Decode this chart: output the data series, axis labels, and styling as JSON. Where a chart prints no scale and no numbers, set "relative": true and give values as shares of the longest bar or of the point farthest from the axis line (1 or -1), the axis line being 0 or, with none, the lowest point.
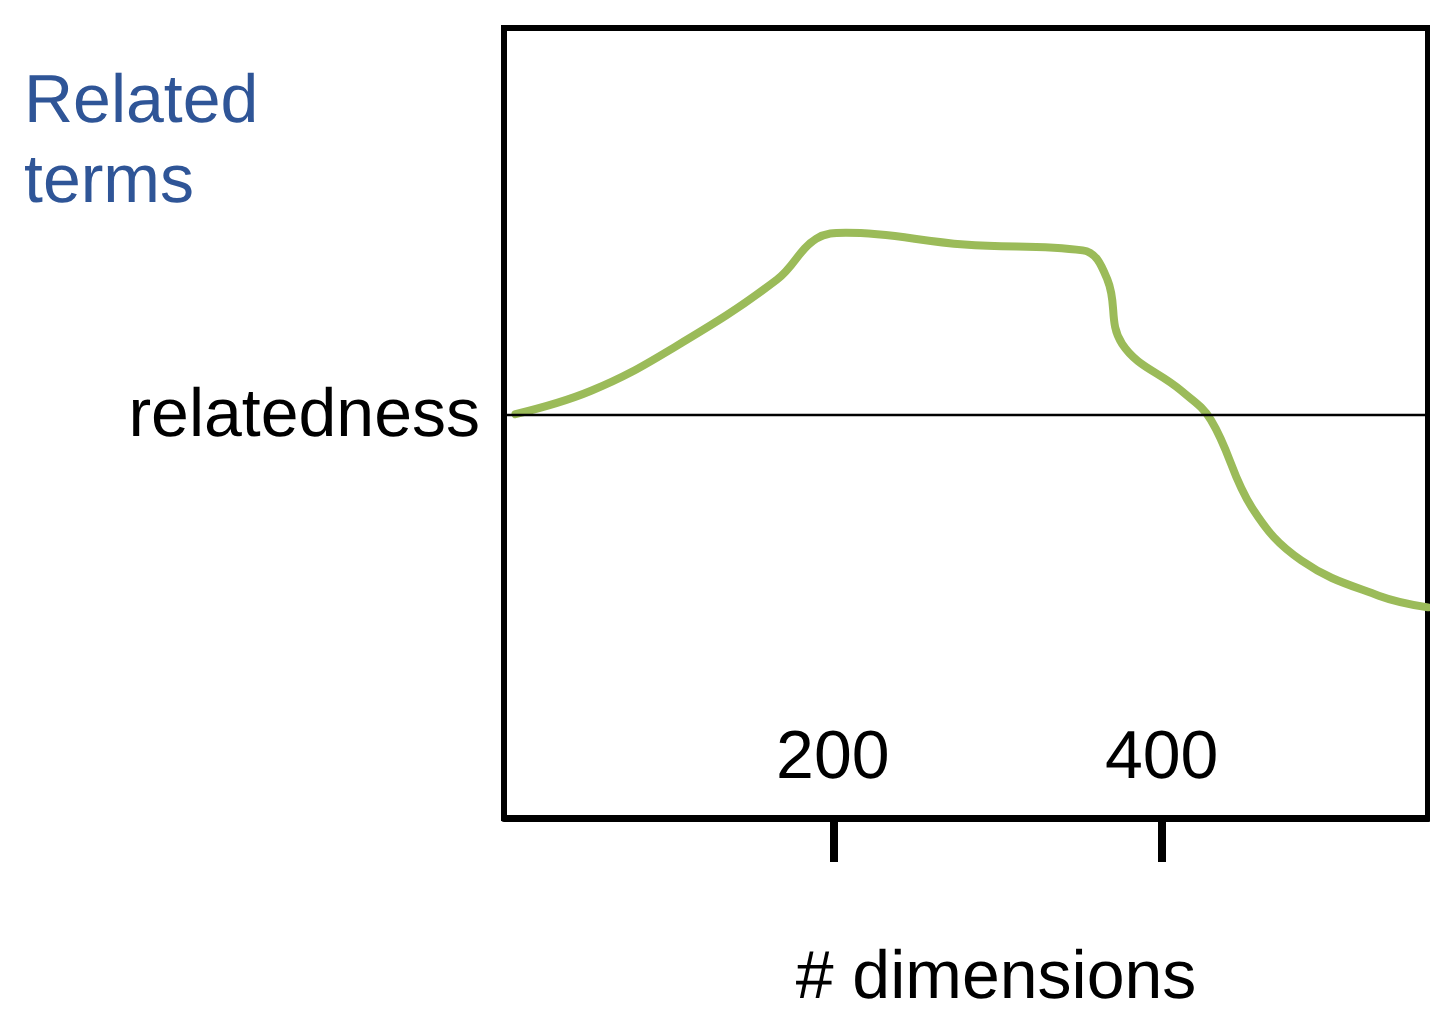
{
  "chart_data": {
    "type": "line",
    "relative": true,
    "ylabel": "Related terms",
    "xlabel": "# dimensions",
    "x": [
      7,
      53,
      101,
      166,
      190,
      208,
      280,
      352,
      367,
      376,
      412,
      430,
      455,
      485,
      532,
      562
    ],
    "series": [
      {
        "color": "#9bbb59",
        "values": [
          0.69,
          0.73,
          0.8,
          0.92,
          0.99,
          1.0,
          0.98,
          0.97,
          0.92,
          0.81,
          0.73,
          0.68,
          0.53,
          0.44,
          0.38,
          0.36
        ]
      }
    ],
    "xlim": [
      0,
      562
    ],
    "xticks": [
      200,
      400
    ],
    "ref_lines": [
      {
        "axis": "y",
        "value": 0.69,
        "label": "relatedness",
        "color": "#000000"
      }
    ],
    "grid": false,
    "marker": "none",
    "line_style": "solid"
  }
}
